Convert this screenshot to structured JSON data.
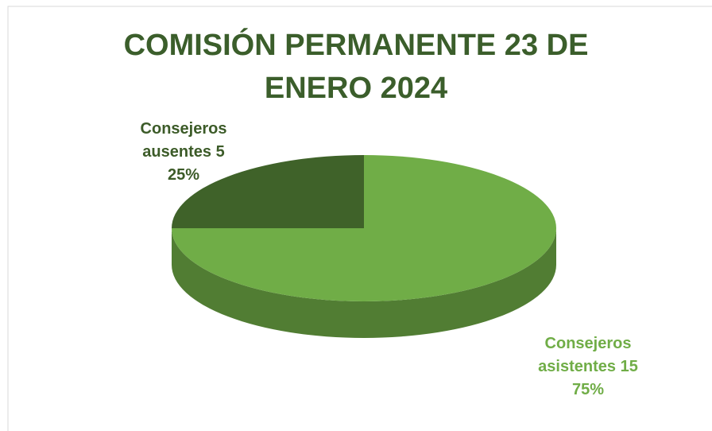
{
  "chart_data": {
    "type": "pie3d",
    "title": "COMISIÓN PERMANENTE 23 DE ENERO 2024",
    "categories": [
      "Consejeros asistentes",
      "Consejeros ausentes"
    ],
    "values": [
      15,
      5
    ],
    "percentages": [
      75,
      25
    ],
    "percentage_labels": [
      "75%",
      "25%"
    ],
    "colors": [
      "#70ad47",
      "#3f6229"
    ],
    "start_angle": 0
  }
}
